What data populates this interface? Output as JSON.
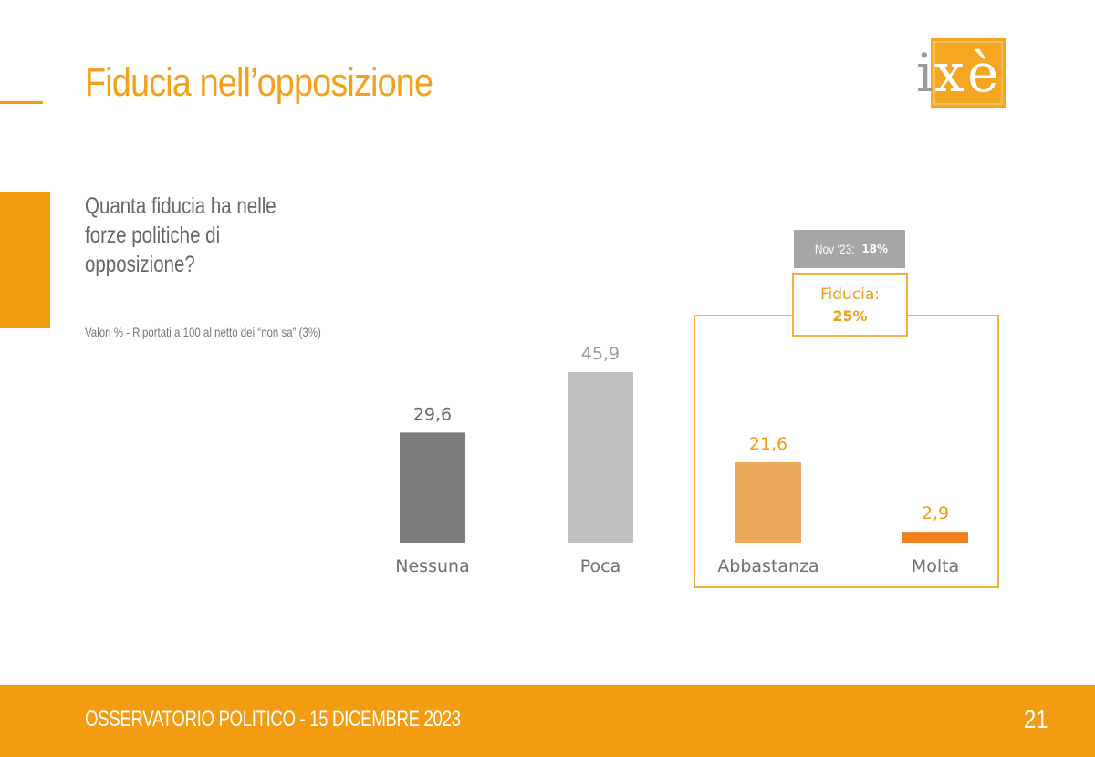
{
  "header": {
    "title": "Fiducia nell’opposizione"
  },
  "logo": {
    "text_i": "i",
    "text_x": "x",
    "text_e": "è"
  },
  "question": "Quanta fiducia ha nelle forze politiche di opposizione?",
  "note": "Valori % - Riportati a 100 al netto dei “non sa” (3%)",
  "comparison": {
    "label": "Nov ‘23:",
    "value": "18%"
  },
  "fiducia": {
    "label": "Fiducia:",
    "value": "25%"
  },
  "footer": {
    "text": "OSSERVATORIO POLITICO - 15 DICEMBRE 2023",
    "page": "21"
  },
  "colors": {
    "accent": "#f39c12",
    "nessuna": "#7b7b7b",
    "poca": "#c0c0c0",
    "abbastanza": "#eba85c",
    "molta": "#f07f1e",
    "label_dark": "#6a6a6a",
    "label_light": "#9a9a9a",
    "label_orange": "#f39c12"
  },
  "chart_data": {
    "type": "bar",
    "categories": [
      "Nessuna",
      "Poca",
      "Abbastanza",
      "Molta"
    ],
    "values": [
      29.6,
      45.9,
      21.6,
      2.9
    ],
    "value_labels": [
      "29,6",
      "45,9",
      "21,6",
      "2,9"
    ],
    "ylim": [
      0,
      45.9
    ],
    "grid": false
  }
}
